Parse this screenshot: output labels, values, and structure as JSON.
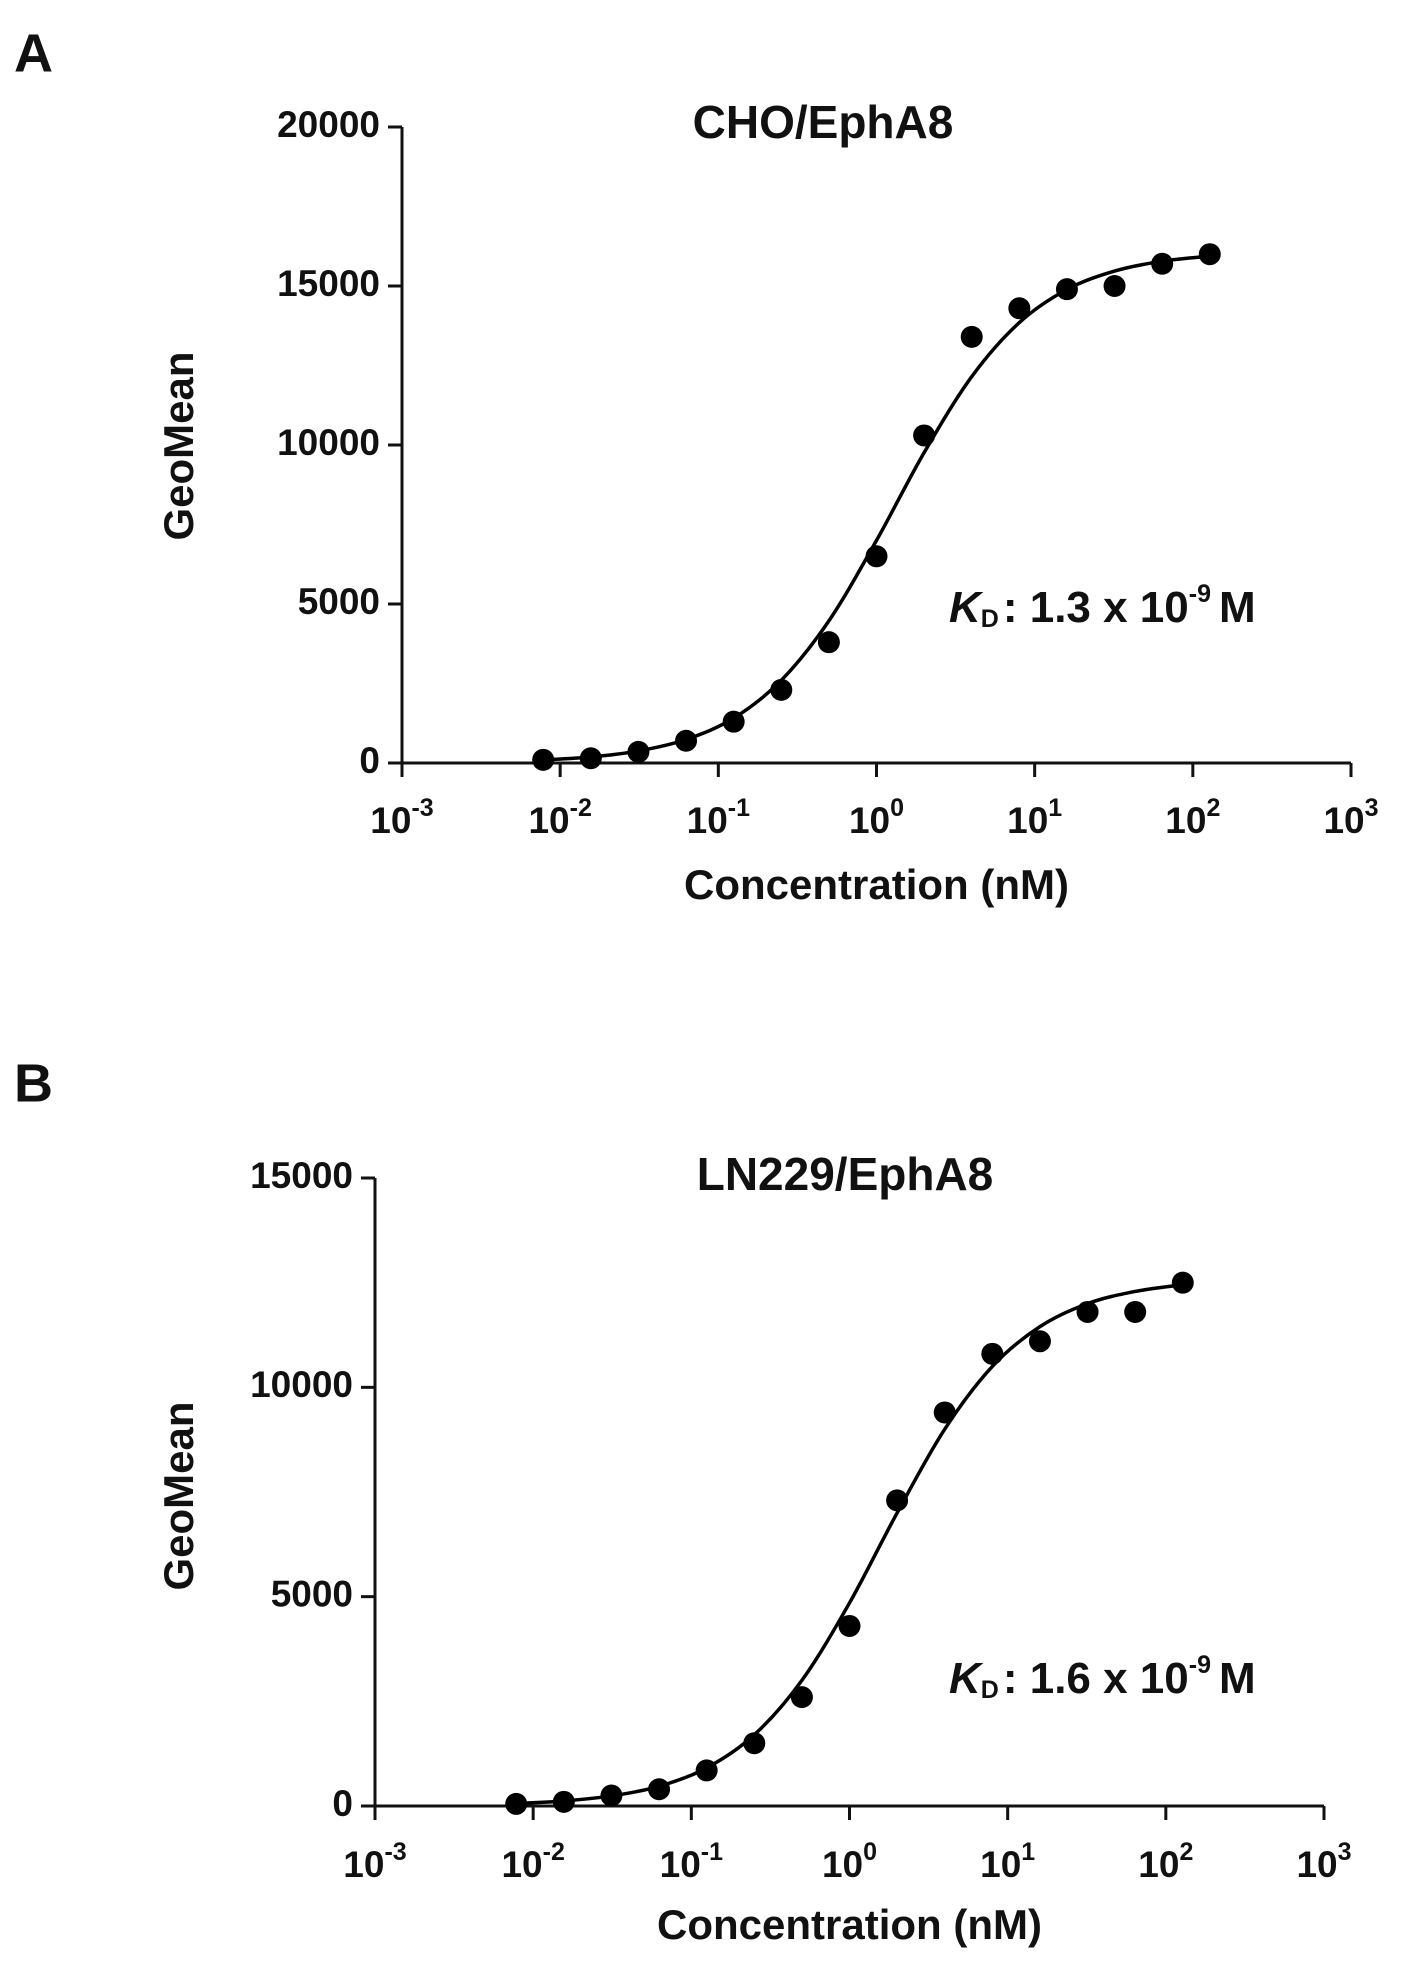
{
  "chart_data": [
    {
      "type": "scatter",
      "panel_label": "A",
      "title": "CHO/EphA8",
      "xlabel": "Concentration (nM)",
      "ylabel": "GeoMean",
      "xscale": "log",
      "color": "#000000",
      "xlim": [
        0.001,
        1000
      ],
      "xticks": [
        {
          "value": 0.001,
          "label": "10",
          "exponent": "-3"
        },
        {
          "value": 0.01,
          "label": "10",
          "exponent": "-2"
        },
        {
          "value": 0.1,
          "label": "10",
          "exponent": "-1"
        },
        {
          "value": 1,
          "label": "10",
          "exponent": "0"
        },
        {
          "value": 10,
          "label": "10",
          "exponent": "1"
        },
        {
          "value": 100,
          "label": "10",
          "exponent": "2"
        },
        {
          "value": 1000,
          "label": "10",
          "exponent": "3"
        }
      ],
      "ylim": [
        0,
        20000
      ],
      "yticks": [
        0,
        5000,
        10000,
        15000,
        20000
      ],
      "x": [
        0.0078125,
        0.015625,
        0.03125,
        0.0625,
        0.125,
        0.25,
        0.5,
        1,
        2,
        4,
        8,
        16,
        32,
        64,
        128
      ],
      "values": [
        100,
        150,
        350,
        700,
        1300,
        2300,
        3800,
        6500,
        10300,
        13400,
        14300,
        14900,
        15000,
        15700,
        16000
      ],
      "fit": [
        100,
        190,
        380,
        740,
        1410,
        2600,
        4470,
        7000,
        9760,
        12150,
        13850,
        14890,
        15470,
        15780,
        15940
      ],
      "annotation": {
        "symbol": "K",
        "subscript": "D",
        "text": ": 1.3 x 10",
        "exponent": "-9",
        "unit": "M"
      }
    },
    {
      "type": "scatter",
      "panel_label": "B",
      "title": "LN229/EphA8",
      "xlabel": "Concentration (nM)",
      "ylabel": "GeoMean",
      "xscale": "log",
      "color": "#000000",
      "xlim": [
        0.001,
        1000
      ],
      "xticks": [
        {
          "value": 0.001,
          "label": "10",
          "exponent": "-3"
        },
        {
          "value": 0.01,
          "label": "10",
          "exponent": "-2"
        },
        {
          "value": 0.1,
          "label": "10",
          "exponent": "-1"
        },
        {
          "value": 1,
          "label": "10",
          "exponent": "0"
        },
        {
          "value": 10,
          "label": "10",
          "exponent": "1"
        },
        {
          "value": 100,
          "label": "10",
          "exponent": "2"
        },
        {
          "value": 1000,
          "label": "10",
          "exponent": "3"
        }
      ],
      "ylim": [
        0,
        15000
      ],
      "yticks": [
        0,
        5000,
        10000,
        15000
      ],
      "x": [
        0.0078125,
        0.015625,
        0.03125,
        0.0625,
        0.125,
        0.25,
        0.5,
        1,
        2,
        4,
        8,
        16,
        32,
        64,
        128
      ],
      "values": [
        50,
        100,
        250,
        400,
        850,
        1500,
        2600,
        4300,
        7300,
        9400,
        10800,
        11100,
        11800,
        11800,
        12500
      ],
      "fit": [
        60,
        120,
        240,
        470,
        910,
        1700,
        3000,
        4850,
        7000,
        9000,
        10500,
        11450,
        12000,
        12290,
        12450
      ],
      "annotation": {
        "symbol": "K",
        "subscript": "D",
        "text": ": 1.6 x 10",
        "exponent": "-9",
        "unit": "M"
      }
    }
  ]
}
